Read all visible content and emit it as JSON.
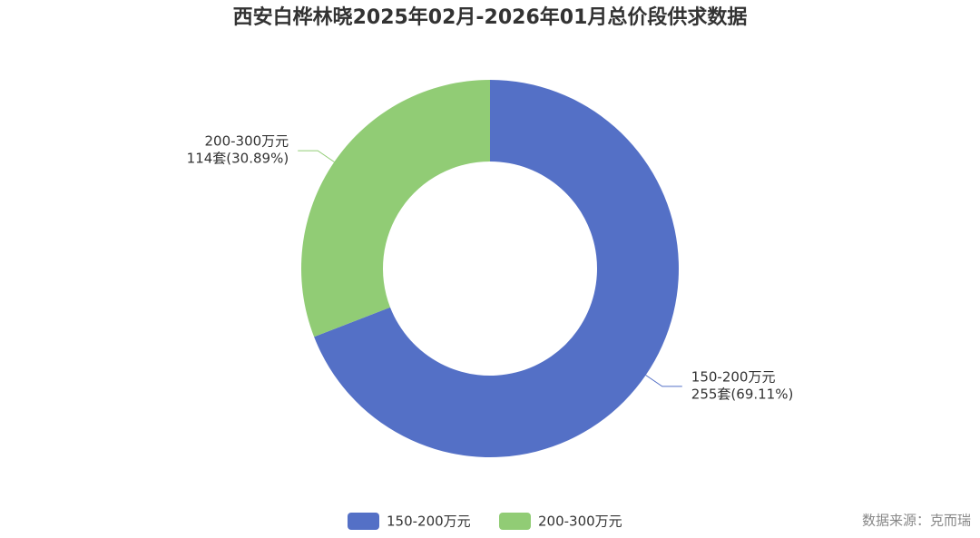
{
  "chart_data": {
    "type": "donut",
    "title": "西安白桦林晓2025年02月-2026年01月总价段供求数据",
    "categories": [
      "150-200万元",
      "200-300万元"
    ],
    "values": [
      255,
      114
    ],
    "value_labels": [
      "255套(69.11%)",
      "114套(30.89%)"
    ],
    "colors": [
      "#5470c6",
      "#91cc75"
    ],
    "legend": "bottom",
    "source": "数据来源：克而瑞"
  }
}
